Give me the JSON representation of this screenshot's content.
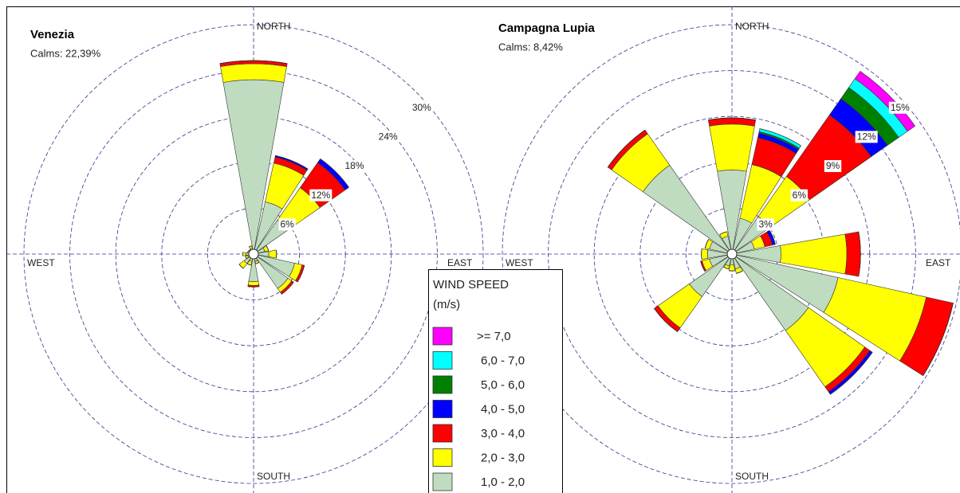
{
  "chart_data": [
    {
      "type": "windrose",
      "title": "Venezia",
      "subtitle": "Calms: 22,39%",
      "direction_labels": {
        "north": "NORTH",
        "east": "EAST",
        "south": "SOUTH",
        "west": "WEST"
      },
      "x": [
        0,
        22.5,
        45,
        67.5,
        90,
        112.5,
        135,
        157.5,
        180,
        202.5,
        225,
        247.5,
        270,
        292.5,
        315,
        337.5
      ],
      "rlim": [
        0,
        30
      ],
      "rticks": [
        {
          "value": 6,
          "label": "6%"
        },
        {
          "value": 12,
          "label": "12%"
        },
        {
          "value": 18,
          "label": "18%"
        },
        {
          "value": 24,
          "label": "24%"
        },
        {
          "value": 30,
          "label": "30%"
        }
      ],
      "grid": true,
      "legend_title": "WIND SPEED",
      "legend_subtitle": "(m/s)",
      "series": [
        {
          "name": "1,0 - 2,0",
          "color": "#c0dcc0",
          "values": [
            22.8,
            7.0,
            5.4,
            1.5,
            2.0,
            5.5,
            5.5,
            1.0,
            3.6,
            1.0,
            1.5,
            0.8,
            1.0,
            0.6,
            0.5,
            0.8
          ]
        },
        {
          "name": "2,0 - 3,0",
          "color": "#ffff00",
          "values": [
            2.1,
            5.2,
            5.2,
            0.5,
            1.0,
            1.0,
            0.6,
            0.3,
            0.5,
            0.5,
            0.8,
            0.3,
            0.4,
            0.2,
            0.2,
            0.3
          ]
        },
        {
          "name": "3,0 - 4,0",
          "color": "#ff0000",
          "values": [
            0.4,
            0.8,
            4.0,
            0,
            0,
            0.3,
            0.3,
            0,
            0.2,
            0,
            0,
            0,
            0,
            0,
            0,
            0
          ]
        },
        {
          "name": "4,0 - 5,0",
          "color": "#0000ff",
          "values": [
            0,
            0.2,
            0.6,
            0,
            0,
            0,
            0,
            0,
            0,
            0,
            0,
            0,
            0,
            0,
            0,
            0
          ]
        },
        {
          "name": "5,0 - 6,0",
          "color": "#008000",
          "values": [
            0,
            0,
            0,
            0,
            0,
            0,
            0,
            0,
            0,
            0,
            0,
            0,
            0,
            0,
            0,
            0
          ]
        },
        {
          "name": "6,0 - 7,0",
          "color": "#00ffff",
          "values": [
            0,
            0,
            0,
            0,
            0,
            0,
            0,
            0,
            0,
            0,
            0,
            0,
            0,
            0,
            0,
            0
          ]
        },
        {
          "name": ">= 7,0",
          "color": "#ff00ff",
          "values": [
            0,
            0,
            0,
            0,
            0,
            0,
            0,
            0,
            0,
            0,
            0,
            0,
            0,
            0,
            0,
            0
          ]
        }
      ]
    },
    {
      "type": "windrose",
      "title": "Campagna Lupia",
      "subtitle": "Calms: 8,42%",
      "direction_labels": {
        "north": "NORTH",
        "east": "EAST",
        "south": "SOUTH",
        "west": "WEST"
      },
      "x": [
        0,
        22.5,
        45,
        67.5,
        90,
        112.5,
        135,
        157.5,
        180,
        202.5,
        225,
        247.5,
        270,
        292.5,
        315,
        337.5
      ],
      "rlim": [
        0,
        15
      ],
      "rticks": [
        {
          "value": 3,
          "label": "3%"
        },
        {
          "value": 6,
          "label": "6%"
        },
        {
          "value": 9,
          "label": "9%"
        },
        {
          "value": 12,
          "label": "12%"
        },
        {
          "value": 15,
          "label": "15%"
        }
      ],
      "grid": true,
      "series": [
        {
          "color": "#c0dcc0",
          "values": [
            5.5,
            2.4,
            3.0,
            1.5,
            3.2,
            7.1,
            6.1,
            1.0,
            0.7,
            0.8,
            3.4,
            1.5,
            1.6,
            1.5,
            7.1,
            1.2
          ]
        },
        {
          "color": "#ffff00",
          "values": [
            3.0,
            3.6,
            3.2,
            0.7,
            4.3,
            5.9,
            4.5,
            0.3,
            0.4,
            0.2,
            2.5,
            0.5,
            0.4,
            0.3,
            2.5,
            0.3
          ]
        },
        {
          "color": "#ff0000",
          "values": [
            0.4,
            1.8,
            4.9,
            0.5,
            0.9,
            1.8,
            0.4,
            0,
            0,
            0,
            0.3,
            0.1,
            0,
            0,
            0.3,
            0
          ]
        },
        {
          "color": "#0000ff",
          "values": [
            0,
            0.3,
            1.3,
            0.2,
            0,
            0,
            0.2,
            0,
            0,
            0,
            0,
            0,
            0,
            0,
            0,
            0
          ]
        },
        {
          "color": "#008000",
          "values": [
            0,
            0.1,
            0.9,
            0,
            0,
            0,
            0,
            0,
            0,
            0,
            0,
            0,
            0,
            0,
            0,
            0
          ]
        },
        {
          "color": "#00ffff",
          "values": [
            0,
            0.2,
            0.7,
            0,
            0,
            0,
            0,
            0,
            0,
            0,
            0,
            0,
            0,
            0,
            0,
            0
          ]
        },
        {
          "color": "#ff00ff",
          "values": [
            0,
            0,
            0.6,
            0,
            0,
            0,
            0,
            0,
            0,
            0,
            0,
            0,
            0,
            0,
            0,
            0
          ]
        }
      ]
    }
  ]
}
